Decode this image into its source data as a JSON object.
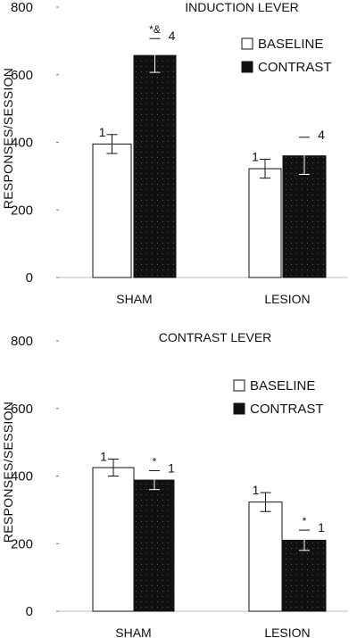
{
  "chart_data": [
    {
      "type": "bar",
      "title": "INDUCTION LEVER",
      "xlabel": "",
      "ylabel": "RESPONSES/SESSION",
      "ylim": [
        0,
        800
      ],
      "yticks": [
        0,
        200,
        400,
        600,
        800
      ],
      "categories": [
        "SHAM",
        "LESION"
      ],
      "legend_placement": "top-right",
      "grid": false,
      "series": [
        {
          "name": "BASELINE",
          "values": [
            395,
            322
          ],
          "errors": [
            28,
            28
          ],
          "fill": "#ffffff"
        },
        {
          "name": "CONTRAST",
          "values": [
            657,
            360
          ],
          "errors": [
            50,
            55
          ],
          "fill": "#111111"
        }
      ],
      "annotations": [
        {
          "category": "SHAM",
          "series": "BASELINE",
          "label": "1",
          "star": ""
        },
        {
          "category": "SHAM",
          "series": "CONTRAST",
          "label": "4",
          "star": "*&"
        },
        {
          "category": "LESION",
          "series": "BASELINE",
          "label": "1",
          "star": ""
        },
        {
          "category": "LESION",
          "series": "CONTRAST",
          "label": "4",
          "star": ""
        }
      ]
    },
    {
      "type": "bar",
      "title": "CONTRAST LEVER",
      "xlabel": "",
      "ylabel": "RESPONSES/SESSION",
      "ylim": [
        0,
        800
      ],
      "yticks": [
        0,
        200,
        400,
        600,
        800
      ],
      "categories": [
        "SHAM",
        "LESION"
      ],
      "legend_placement": "top-right",
      "grid": false,
      "series": [
        {
          "name": "BASELINE",
          "values": [
            425,
            323
          ],
          "errors": [
            25,
            28
          ],
          "fill": "#ffffff"
        },
        {
          "name": "CONTRAST",
          "values": [
            388,
            210
          ],
          "errors": [
            28,
            30
          ],
          "fill": "#111111"
        }
      ],
      "annotations": [
        {
          "category": "SHAM",
          "series": "BASELINE",
          "label": "1",
          "star": ""
        },
        {
          "category": "SHAM",
          "series": "CONTRAST",
          "label": "1",
          "star": "*"
        },
        {
          "category": "LESION",
          "series": "BASELINE",
          "label": "1",
          "star": ""
        },
        {
          "category": "LESION",
          "series": "CONTRAST",
          "label": "1",
          "star": "*"
        }
      ]
    }
  ]
}
